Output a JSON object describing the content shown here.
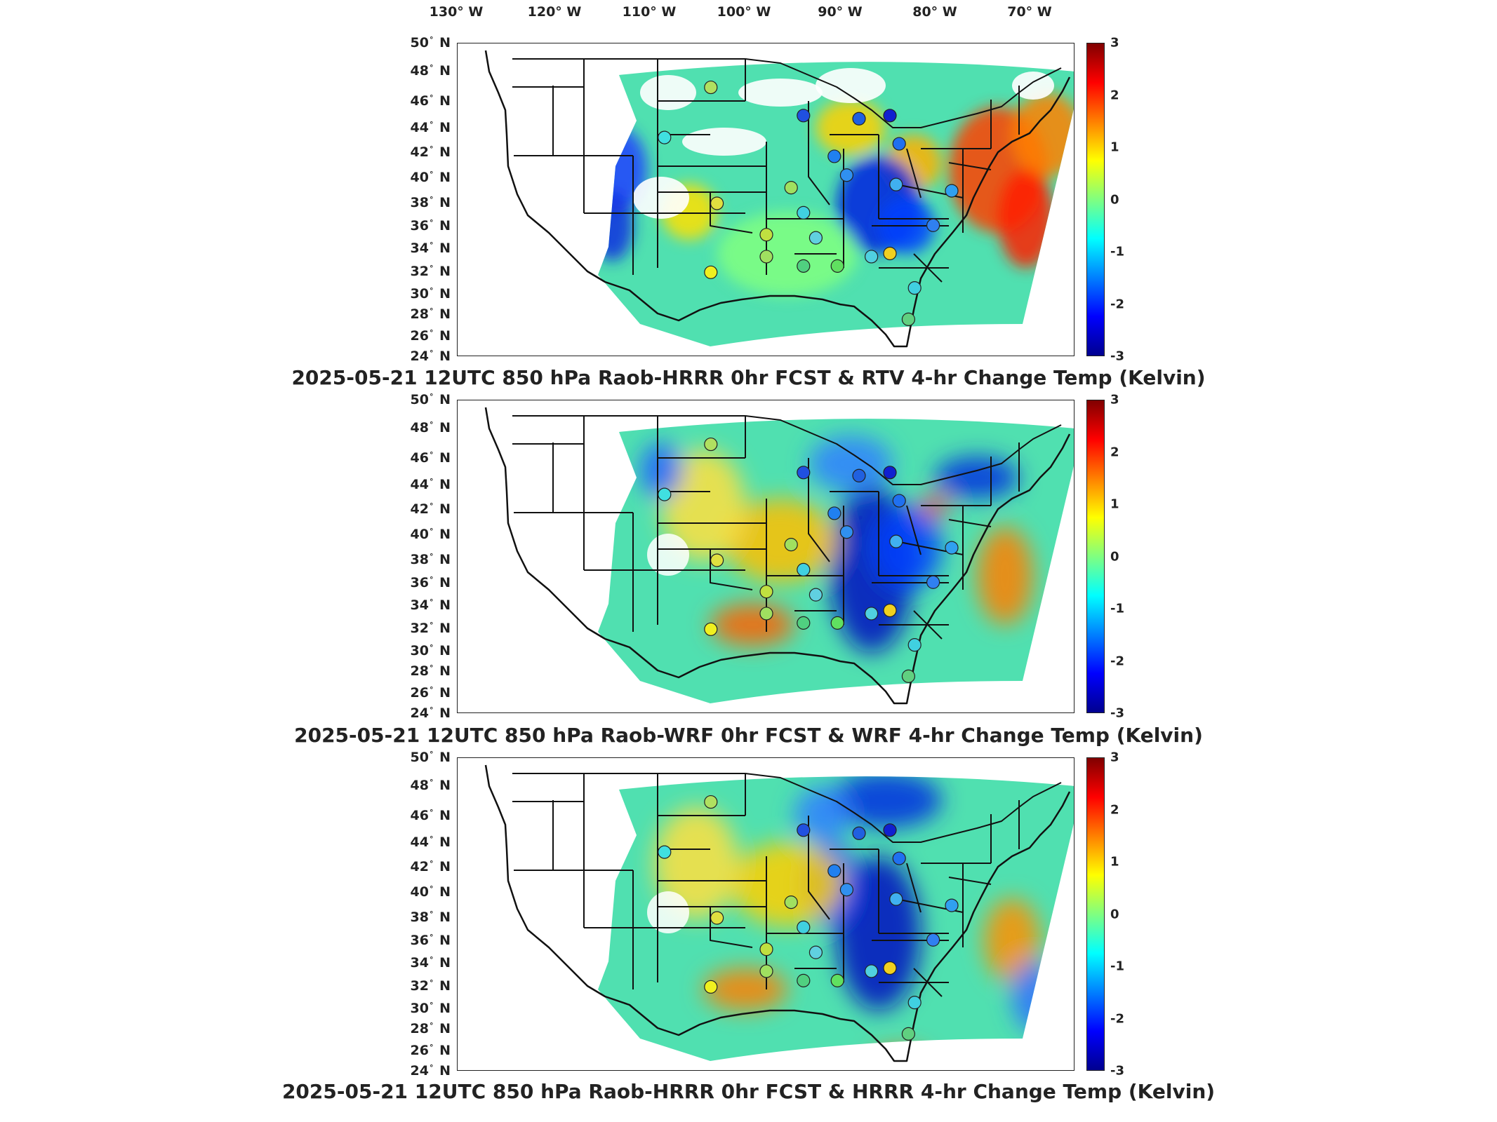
{
  "longitude_labels": [
    "130° W",
    "120° W",
    "110° W",
    "100° W",
    "90° W",
    "80° W",
    "70° W"
  ],
  "latitude_labels": [
    "50° N",
    "48° N",
    "46° N",
    "44° N",
    "42° N",
    "40° N",
    "38° N",
    "36° N",
    "34° N",
    "32° N",
    "30° N",
    "28° N",
    "26° N",
    "24° N"
  ],
  "colorbar": {
    "ticks": [
      "3",
      "2",
      "1",
      "0",
      "-1",
      "-2",
      "-3"
    ],
    "min": -3,
    "max": 3,
    "colormap": [
      "#00008f",
      "#0000ff",
      "#0080ff",
      "#00ffff",
      "#80ff80",
      "#ffff00",
      "#ff8000",
      "#ff0000",
      "#800000"
    ]
  },
  "panels": [
    {
      "caption": "2025-05-21 12UTC 850 hPa Raob-HRRR 0hr FCST & RTV 4-hr Change Temp (Kelvin)"
    },
    {
      "caption": "2025-05-21 12UTC 850 hPa Raob-WRF 0hr FCST & WRF 4-hr Change Temp (Kelvin)"
    },
    {
      "caption": "2025-05-21 12UTC 850 hPa Raob-HRRR 0hr FCST & HRRR 4-hr Change Temp (Kelvin)"
    }
  ]
}
